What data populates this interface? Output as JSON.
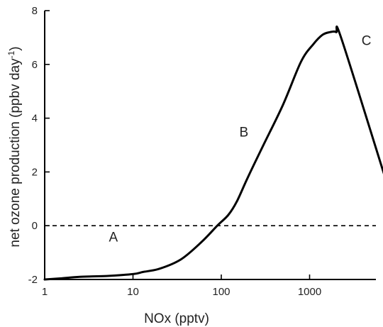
{
  "chart_data": {
    "type": "line",
    "xlabel": "NOx (pptv)",
    "ylabel": "net ozone production (ppbv day",
    "ylabel_sup": "-1",
    "ylabel_close": ")",
    "xscale": "log",
    "xlim": [
      1,
      10000
    ],
    "ylim": [
      -2,
      8
    ],
    "x_ticks": [
      1,
      10,
      100,
      1000
    ],
    "x_tick_labels": [
      "1",
      "10",
      "100",
      "1000"
    ],
    "y_ticks": [
      -2,
      0,
      2,
      4,
      6,
      8
    ],
    "y_tick_labels": [
      "-2",
      "0",
      "2",
      "4",
      "6",
      "8"
    ],
    "reference_line": {
      "y": 0,
      "style": "dashed"
    },
    "series": [
      {
        "x": [
          1,
          1.5,
          2.5,
          5,
          10,
          13,
          20,
          35,
          60,
          90,
          120,
          150,
          200,
          300,
          500,
          800,
          1100,
          1400,
          1700,
          2000,
          2300,
          7000
        ],
        "y": [
          -2.0,
          -1.96,
          -1.9,
          -1.87,
          -1.8,
          -1.72,
          -1.6,
          -1.25,
          -0.6,
          0.0,
          0.4,
          0.9,
          1.8,
          3.0,
          4.5,
          6.1,
          6.75,
          7.1,
          7.2,
          7.2,
          6.95,
          1.9
        ]
      }
    ],
    "annotations": [
      {
        "text": "A",
        "x": 6,
        "y": -0.4
      },
      {
        "text": "B",
        "x": 180,
        "y": 3.5
      },
      {
        "text": "C",
        "x": 4400,
        "y": 6.9
      }
    ]
  }
}
